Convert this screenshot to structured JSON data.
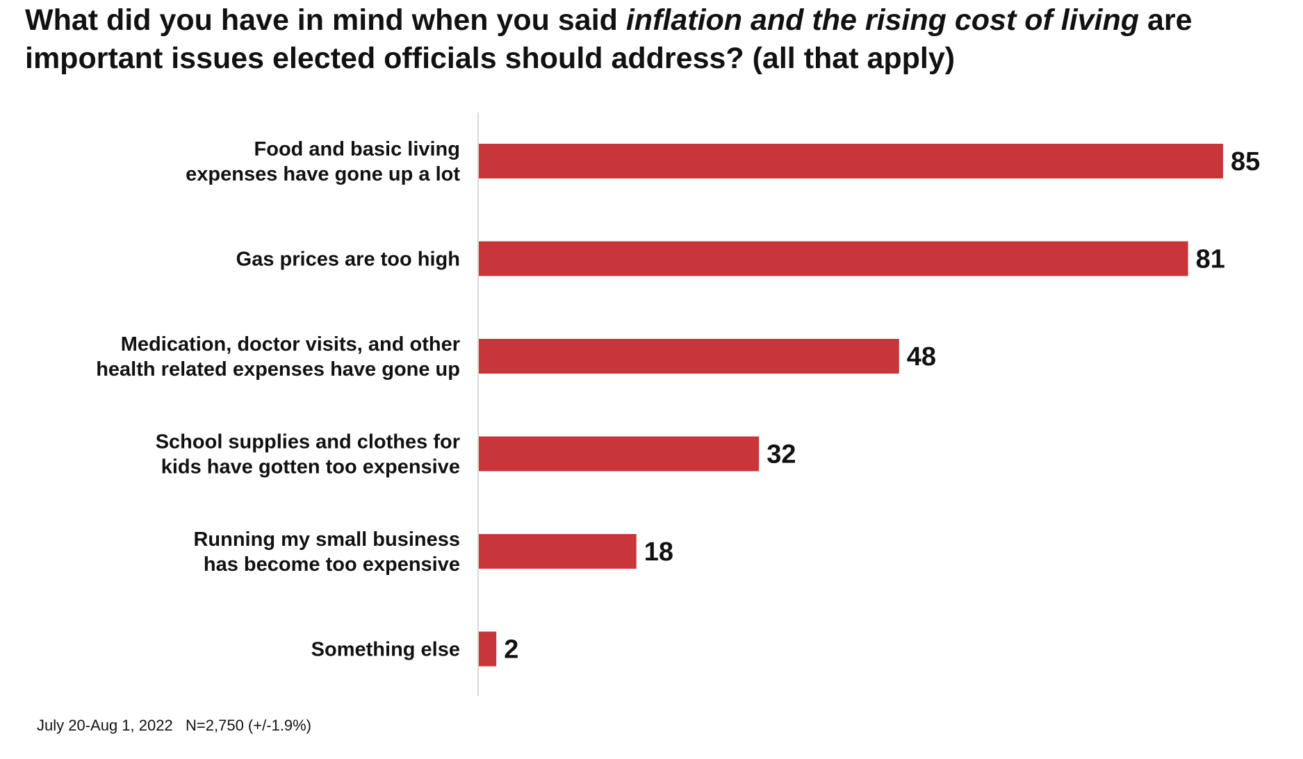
{
  "title": {
    "part1": "What did you have in mind when you said ",
    "emphasis": "inflation and the rising cost of living",
    "part2": " are important issues elected officials should address? (all that apply)"
  },
  "chart_data": {
    "type": "bar",
    "orientation": "horizontal",
    "categories": [
      [
        "Food and basic living",
        "expenses have gone up a lot"
      ],
      [
        "Gas prices are too high"
      ],
      [
        "Medication, doctor visits, and other",
        "health related expenses have gone up"
      ],
      [
        "School supplies and clothes for",
        "kids have gotten too expensive"
      ],
      [
        "Running my small business",
        "has become too expensive"
      ],
      [
        "Something else"
      ]
    ],
    "values": [
      85,
      81,
      48,
      32,
      18,
      2
    ],
    "xlim": [
      0,
      100
    ],
    "grid": false,
    "legend": "none",
    "bar_color": "#C9363A",
    "axis_color": "#d9d9d9"
  },
  "footnote": "July 20-Aug 1, 2022   N=2,750 (+/-1.9%)"
}
